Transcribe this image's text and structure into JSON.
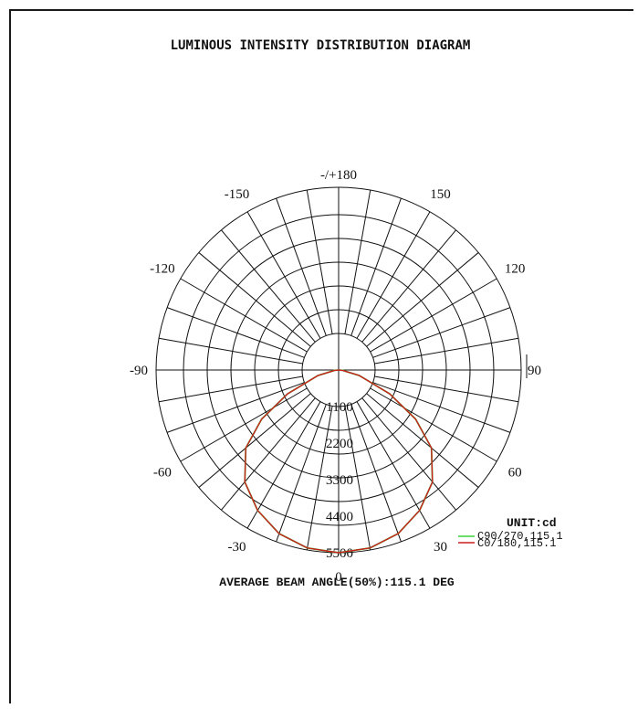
{
  "chart_data": {
    "type": "polar",
    "title": "LUMINOUS INTENSITY DISTRIBUTION DIAGRAM",
    "angle_labels": [
      {
        "angle": 0,
        "text": "0"
      },
      {
        "angle": 30,
        "text": "30"
      },
      {
        "angle": 60,
        "text": "60"
      },
      {
        "angle": 90,
        "text": "90"
      },
      {
        "angle": 120,
        "text": "120"
      },
      {
        "angle": 150,
        "text": "150"
      },
      {
        "angle": 180,
        "text": "-/+180"
      },
      {
        "angle": -150,
        "text": "-150"
      },
      {
        "angle": -120,
        "text": "-120"
      },
      {
        "angle": -90,
        "text": "-90"
      },
      {
        "angle": -60,
        "text": "-60"
      },
      {
        "angle": -30,
        "text": "-30"
      }
    ],
    "radial_ticks": [
      "1100",
      "2200",
      "3300",
      "4400",
      "5500"
    ],
    "radial_values": [
      1100,
      2200,
      3300,
      4400,
      5500
    ],
    "rlim": [
      0,
      5500
    ],
    "unit_label": "UNIT:cd",
    "series": [
      {
        "name": "C0/180,115.1",
        "color": "#cc1f1f",
        "points": [
          [
            0,
            5500
          ],
          [
            10,
            5440
          ],
          [
            20,
            5240
          ],
          [
            30,
            4880
          ],
          [
            40,
            4400
          ],
          [
            50,
            3650
          ],
          [
            57.5,
            2750
          ],
          [
            65,
            1700
          ],
          [
            75,
            650
          ],
          [
            85,
            120
          ],
          [
            90,
            0
          ]
        ]
      },
      {
        "name": "C90/270,115.1",
        "color": "#3ad43a",
        "points": [
          [
            0,
            5500
          ],
          [
            10,
            5440
          ],
          [
            20,
            5240
          ],
          [
            30,
            4880
          ],
          [
            40,
            4400
          ],
          [
            50,
            3650
          ],
          [
            57.5,
            2750
          ],
          [
            65,
            1700
          ],
          [
            75,
            650
          ],
          [
            85,
            120
          ],
          [
            90,
            0
          ]
        ]
      }
    ],
    "footer": "AVERAGE BEAM ANGLE(50%):115.1 DEG"
  }
}
